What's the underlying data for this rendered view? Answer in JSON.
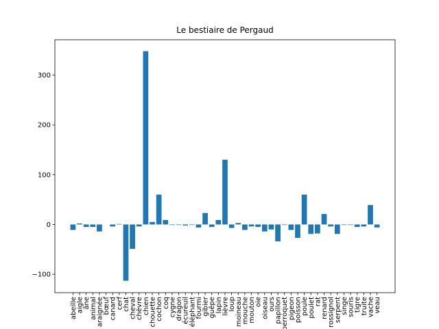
{
  "chart_data": {
    "type": "bar",
    "title": "Le bestiaire de Pergaud",
    "categories": [
      "abeille",
      "aigle",
      "âne",
      "animal",
      "araignée",
      "bœuf",
      "canard",
      "cerf",
      "chat",
      "cheval",
      "chèvre",
      "chien",
      "chouette",
      "cochon",
      "coq",
      "cygne",
      "dragon",
      "écureuil",
      "éléphant",
      "fourmi",
      "gibier",
      "guêpe",
      "lapin",
      "lièvre",
      "loup",
      "moineau",
      "mouche",
      "mouton",
      "oie",
      "oiseau",
      "ours",
      "papillon",
      "perroquet",
      "pigeon",
      "poisson",
      "poule",
      "poulet",
      "rat",
      "renard",
      "rossignol",
      "serpent",
      "singe",
      "souris",
      "tigre",
      "truite",
      "vache",
      "veau"
    ],
    "values": [
      -11,
      2,
      -5,
      -5,
      -14,
      0,
      -4,
      1,
      -113,
      -49,
      -4,
      348,
      5,
      60,
      9,
      -1,
      -1,
      -2,
      -1,
      -6,
      23,
      -5,
      9,
      130,
      -7,
      3,
      -11,
      -4,
      -5,
      -14,
      -10,
      -34,
      -1,
      -11,
      -27,
      60,
      -19,
      -18,
      21,
      -4,
      -19,
      -1,
      -1,
      -5,
      -4,
      39,
      -6
    ],
    "color": "#1f77b4",
    "ylim": [
      -137,
      371
    ],
    "yticks": [
      {
        "value": -100,
        "label": "−100"
      },
      0,
      100,
      200,
      300
    ]
  }
}
